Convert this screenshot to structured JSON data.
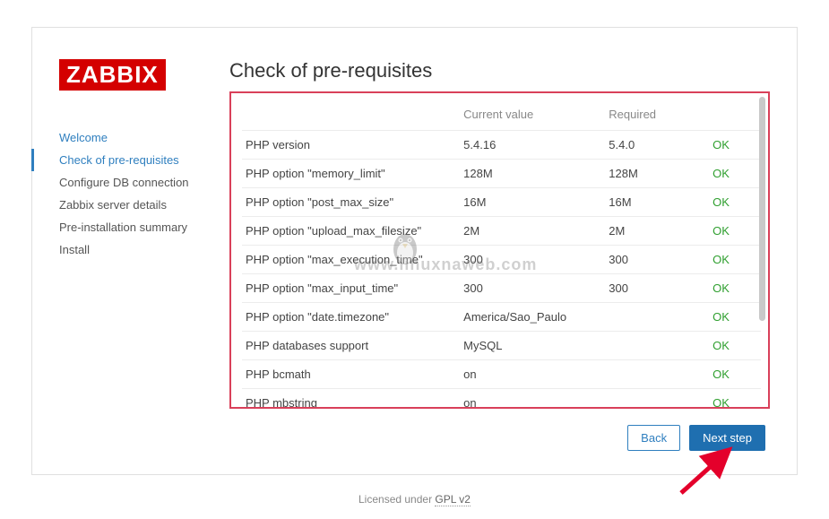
{
  "logo_text": "ZABBIX",
  "page_title": "Check of pre-requisites",
  "nav": {
    "items": [
      {
        "label": "Welcome",
        "link": true,
        "active": false
      },
      {
        "label": "Check of pre-requisites",
        "link": true,
        "active": true
      },
      {
        "label": "Configure DB connection",
        "link": false,
        "active": false
      },
      {
        "label": "Zabbix server details",
        "link": false,
        "active": false
      },
      {
        "label": "Pre-installation summary",
        "link": false,
        "active": false
      },
      {
        "label": "Install",
        "link": false,
        "active": false
      }
    ]
  },
  "table": {
    "headers": {
      "name": "",
      "current": "Current value",
      "required": "Required",
      "status": ""
    },
    "rows": [
      {
        "name": "PHP version",
        "current": "5.4.16",
        "required": "5.4.0",
        "status": "OK"
      },
      {
        "name": "PHP option \"memory_limit\"",
        "current": "128M",
        "required": "128M",
        "status": "OK"
      },
      {
        "name": "PHP option \"post_max_size\"",
        "current": "16M",
        "required": "16M",
        "status": "OK"
      },
      {
        "name": "PHP option \"upload_max_filesize\"",
        "current": "2M",
        "required": "2M",
        "status": "OK"
      },
      {
        "name": "PHP option \"max_execution_time\"",
        "current": "300",
        "required": "300",
        "status": "OK"
      },
      {
        "name": "PHP option \"max_input_time\"",
        "current": "300",
        "required": "300",
        "status": "OK"
      },
      {
        "name": "PHP option \"date.timezone\"",
        "current": "America/Sao_Paulo",
        "required": "",
        "status": "OK"
      },
      {
        "name": "PHP databases support",
        "current": "MySQL",
        "required": "",
        "status": "OK"
      },
      {
        "name": "PHP bcmath",
        "current": "on",
        "required": "",
        "status": "OK"
      },
      {
        "name": "PHP mbstring",
        "current": "on",
        "required": "",
        "status": "OK"
      }
    ]
  },
  "buttons": {
    "back": "Back",
    "next": "Next step"
  },
  "footer": {
    "licensed": "Licensed under ",
    "gpl": "GPL v2"
  },
  "watermark": "www.linuxnaweb.com",
  "colors": {
    "brand_red": "#d40000",
    "highlight_border": "#d9405a",
    "link_blue": "#2f7fbf",
    "ok_green": "#2f9f2f",
    "primary_button": "#1f6fb0",
    "arrow": "#e4002b"
  }
}
